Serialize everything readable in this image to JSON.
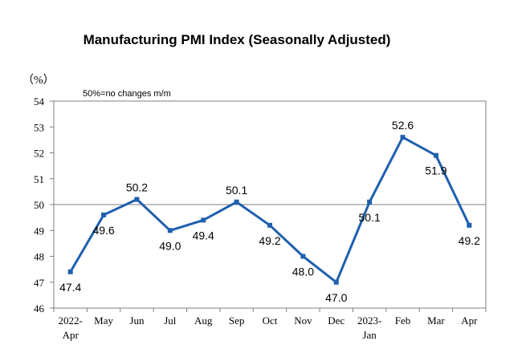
{
  "chart_data": {
    "type": "line",
    "title": "Manufacturing PMI Index (Seasonally Adjusted)",
    "unit_label": "（%）",
    "annotation": "50%=no changes m/m",
    "categories": [
      "2022-Apr",
      "May",
      "Jun",
      "Jul",
      "Aug",
      "Sep",
      "Oct",
      "Nov",
      "Dec",
      "2023-Jan",
      "Feb",
      "Mar",
      "Apr"
    ],
    "category_lines": [
      [
        "2022-",
        "Apr"
      ],
      [
        "May"
      ],
      [
        "Jun"
      ],
      [
        "Jul"
      ],
      [
        "Aug"
      ],
      [
        "Sep"
      ],
      [
        "Oct"
      ],
      [
        "Nov"
      ],
      [
        "Dec"
      ],
      [
        "2023-",
        "Jan"
      ],
      [
        "Feb"
      ],
      [
        "Mar"
      ],
      [
        "Apr"
      ]
    ],
    "series": [
      {
        "values": [
          47.4,
          49.6,
          50.2,
          49.0,
          49.4,
          50.1,
          49.2,
          48.0,
          47.0,
          50.1,
          52.6,
          51.9,
          49.2
        ]
      }
    ],
    "data_labels": [
      "47.4",
      "49.6",
      "50.2",
      "49.0",
      "49.4",
      "50.1",
      "49.2",
      "48.0",
      "47.0",
      "50.1",
      "52.6",
      "51.9",
      "49.2"
    ],
    "ylim": [
      46,
      54
    ],
    "yticks": [
      46,
      47,
      48,
      49,
      50,
      51,
      52,
      53,
      54
    ],
    "reference_line": 50,
    "grid": false,
    "legend": "none",
    "colors": {
      "line": "#1f5fae",
      "marker": "#1f5fae",
      "reference": "#7f7f7f",
      "axis": "#7f7f7f"
    }
  }
}
